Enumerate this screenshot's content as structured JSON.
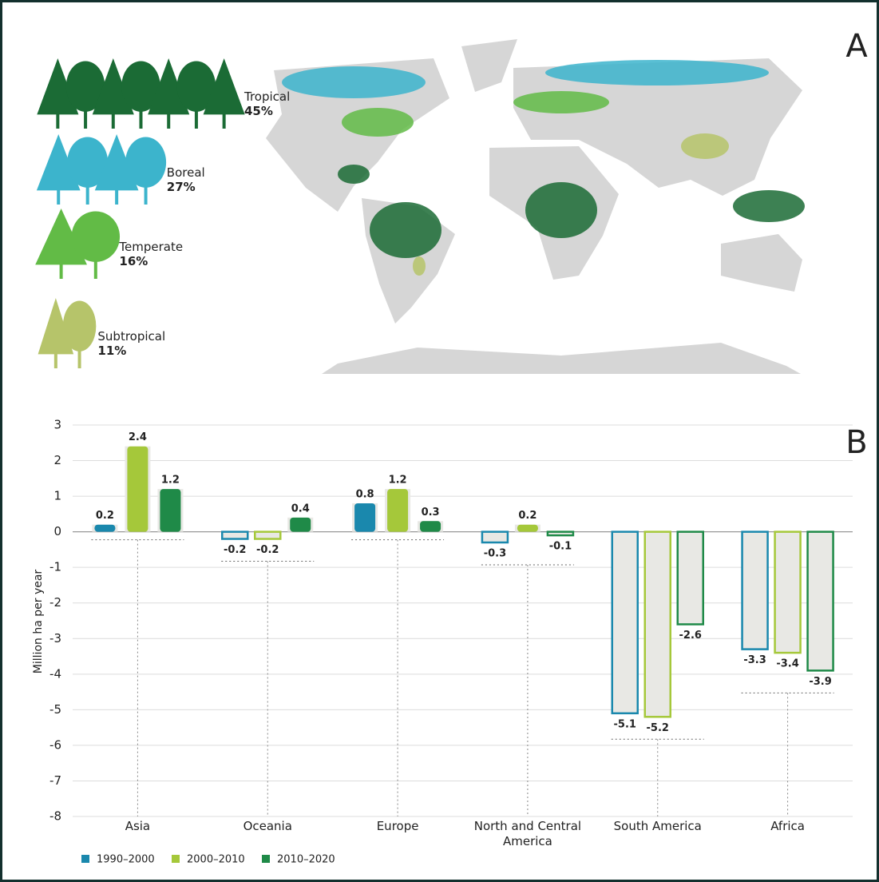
{
  "chart_data": [
    {
      "type": "map",
      "label": "A",
      "categories": [
        "Tropical",
        "Boreal",
        "Temperate",
        "Subtropical"
      ],
      "values": [
        45,
        27,
        16,
        11
      ],
      "value_labels": [
        "45%",
        "27%",
        "16%",
        "11%"
      ],
      "colors": [
        "#1b6b35",
        "#3cb4cc",
        "#62bb46",
        "#b6c46a"
      ]
    },
    {
      "type": "bar",
      "label": "B",
      "y_label": "Million ha per year",
      "categories": [
        "Asia",
        "Oceania",
        "Europe",
        "North and Central America",
        "South America",
        "Africa"
      ],
      "series": [
        {
          "name": "1990–2000",
          "color": "#1a88ad",
          "values": [
            0.2,
            -0.2,
            0.8,
            -0.3,
            -5.1,
            -3.3
          ]
        },
        {
          "name": "2000–2010",
          "color": "#a5c83a",
          "values": [
            2.4,
            -0.2,
            1.2,
            0.2,
            -5.2,
            -3.4
          ]
        },
        {
          "name": "2010–2020",
          "color": "#1f8a48",
          "values": [
            1.2,
            0.4,
            0.3,
            -0.1,
            -2.6,
            -3.9
          ]
        }
      ],
      "ylim": [
        -8,
        3
      ],
      "yticks": [
        -8,
        -7,
        -6,
        -5,
        -4,
        -3,
        -2,
        -1,
        0,
        1,
        2,
        3
      ],
      "grid": true
    }
  ]
}
